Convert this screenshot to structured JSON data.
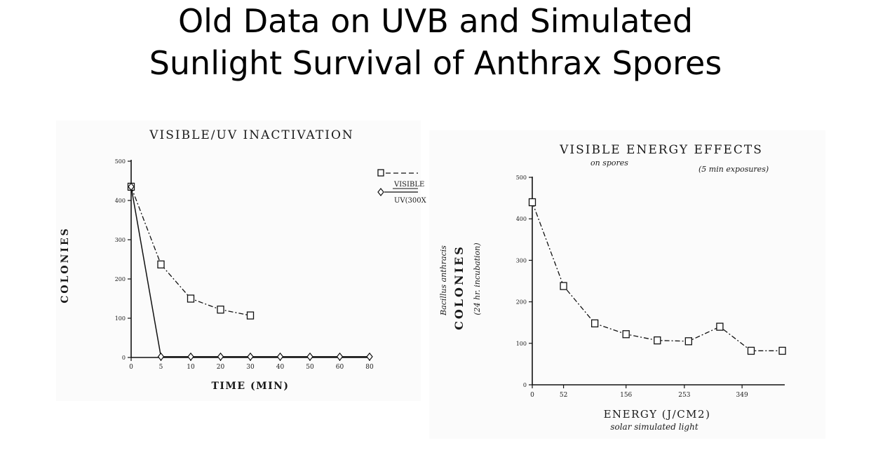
{
  "slide": {
    "title_line1": "Old Data on UVB and Simulated",
    "title_line2": "Sunlight Survival of Anthrax Spores"
  },
  "chart_data": [
    {
      "type": "line",
      "title": "VISIBLE/UV INACTIVATION",
      "xlabel": "TIME (MIN)",
      "ylabel": "COLONIES",
      "xlim": [
        0,
        80
      ],
      "ylim": [
        0,
        500
      ],
      "x_ticks": [
        "0",
        "5",
        "10",
        "20",
        "30",
        "40",
        "50",
        "60",
        "80"
      ],
      "y_ticks": [
        "0",
        "100",
        "200",
        "300",
        "400",
        "500"
      ],
      "legend": {
        "placement": "top-right",
        "entries": [
          "VISIBLE",
          "UV(300X"
        ]
      },
      "series": [
        {
          "name": "VISIBLE",
          "marker": "square",
          "line": "dash-dot",
          "x_index": [
            0,
            1,
            2,
            3,
            4
          ],
          "values": [
            435,
            237,
            150,
            122,
            107
          ]
        },
        {
          "name": "UV(300X",
          "marker": "diamond",
          "line": "solid",
          "x_index": [
            0,
            1,
            2,
            3,
            4,
            5,
            6,
            7,
            8
          ],
          "values": [
            435,
            2,
            2,
            2,
            2,
            2,
            2,
            2,
            2
          ]
        }
      ]
    },
    {
      "type": "line",
      "title": "VISIBLE ENERGY EFFECTS",
      "xlabel": "ENERGY (J/CM2)",
      "ylabel": "COLONIES",
      "xlim": [
        0,
        420
      ],
      "ylim": [
        0,
        500
      ],
      "x_ticks": [
        "0",
        "52",
        "156",
        "253",
        "349"
      ],
      "x_tick_values": [
        0,
        52,
        156,
        253,
        349
      ],
      "y_ticks": [
        "0",
        "100",
        "200",
        "300",
        "400",
        "500"
      ],
      "annotations": {
        "title_note": "on spores",
        "exposure_note": "(5 min exposures)",
        "ylabel_note_1": "Bacillus anthracis",
        "ylabel_note_2": "(24 hr. incubation)",
        "xlabel_note": "solar simulated light"
      },
      "series": [
        {
          "marker": "square",
          "line": "dash-dot",
          "x": [
            0,
            52,
            104,
            156,
            208,
            260,
            312,
            364,
            416
          ],
          "values": [
            440,
            238,
            148,
            122,
            107,
            105,
            140,
            82,
            82
          ]
        }
      ]
    }
  ]
}
